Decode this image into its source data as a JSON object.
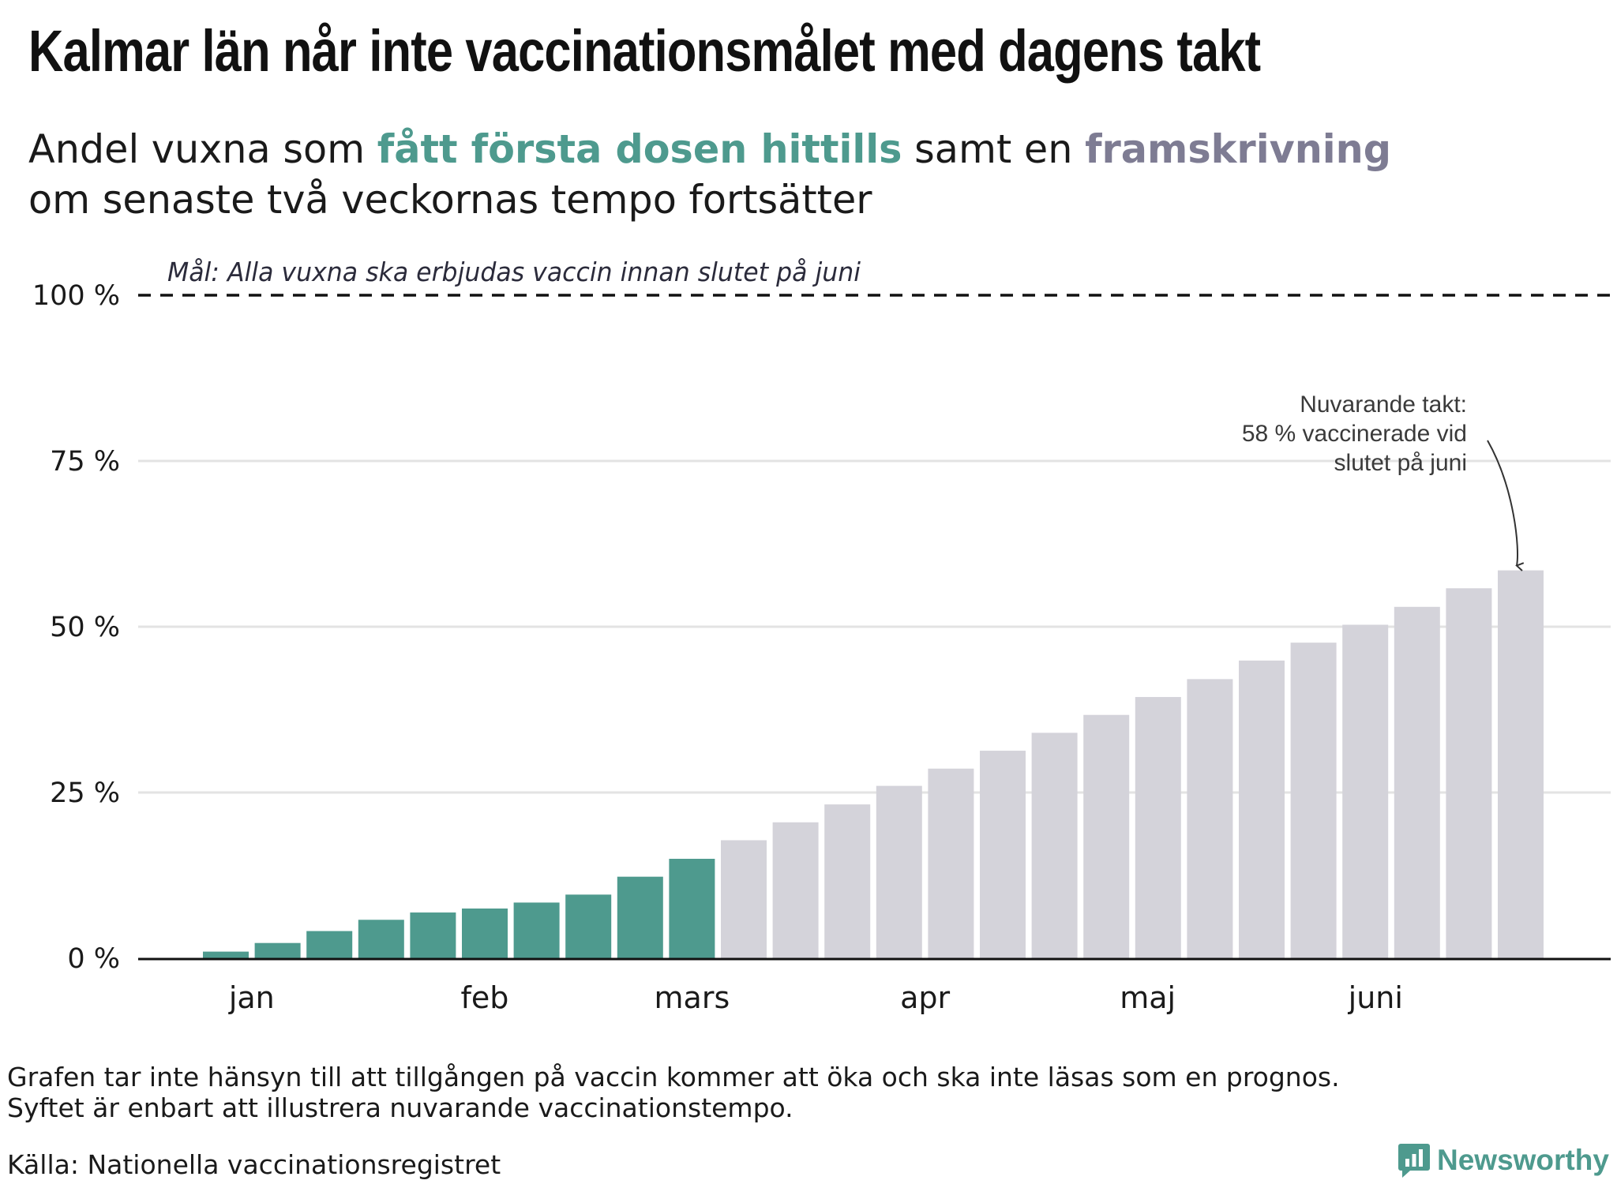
{
  "title": "Kalmar län når inte vaccinationsmålet med dagens takt",
  "subtitle": {
    "part1": "Andel vuxna som ",
    "highlight1": "fått första dosen hittills",
    "part2": " samt en ",
    "highlight2": "framskrivning",
    "line2": "om senaste två veckornas tempo fortsätter"
  },
  "colors": {
    "actual": "#4e9a8e",
    "projection": "#d4d3da",
    "subtitle_highlight_projection": "#7e7c93"
  },
  "chart_data": {
    "type": "bar",
    "y_unit": "%",
    "ylim": [
      0,
      100
    ],
    "y_ticks": [
      {
        "value": 0,
        "label": "0 %"
      },
      {
        "value": 25,
        "label": "25 %"
      },
      {
        "value": 50,
        "label": "50 %"
      },
      {
        "value": 75,
        "label": "75 %"
      },
      {
        "value": 100,
        "label": "100 %"
      }
    ],
    "month_labels": [
      "jan",
      "feb",
      "mars",
      "apr",
      "maj",
      "juni"
    ],
    "month_label_after_bar": [
      1.5,
      6,
      10,
      14.5,
      18.8,
      23.2
    ],
    "series": [
      {
        "kind": "actual",
        "values": [
          1.0,
          2.3,
          4.1,
          5.8,
          6.9,
          7.5,
          8.4,
          9.6,
          12.3,
          15.0
        ]
      },
      {
        "kind": "projection",
        "values": [
          17.8,
          20.5,
          23.2,
          26.0,
          28.6,
          31.3,
          34.0,
          36.7,
          39.4,
          42.1,
          44.9,
          47.6,
          50.3,
          53.0,
          55.8,
          58.5
        ]
      }
    ],
    "goal": {
      "value": 100,
      "label": "Mål: Alla vuxna ska erbjudas vaccin innan slutet på juni"
    },
    "annotation": {
      "lines": [
        "Nuvarande takt:",
        "58 % vaccinerade vid",
        "slutet på juni"
      ],
      "points_to_bar": 26
    },
    "grid": true
  },
  "footnote": {
    "line1": "Grafen tar inte hänsyn till att tillgången på vaccin kommer att öka och ska inte läsas som en prognos.",
    "line2": "Syftet är enbart att illustrera nuvarande vaccinationstempo."
  },
  "source": "Källa: Nationella vaccinationsregistret",
  "brand": {
    "name": "Newsworthy",
    "icon": "newsworthy-chat-bars-icon"
  }
}
